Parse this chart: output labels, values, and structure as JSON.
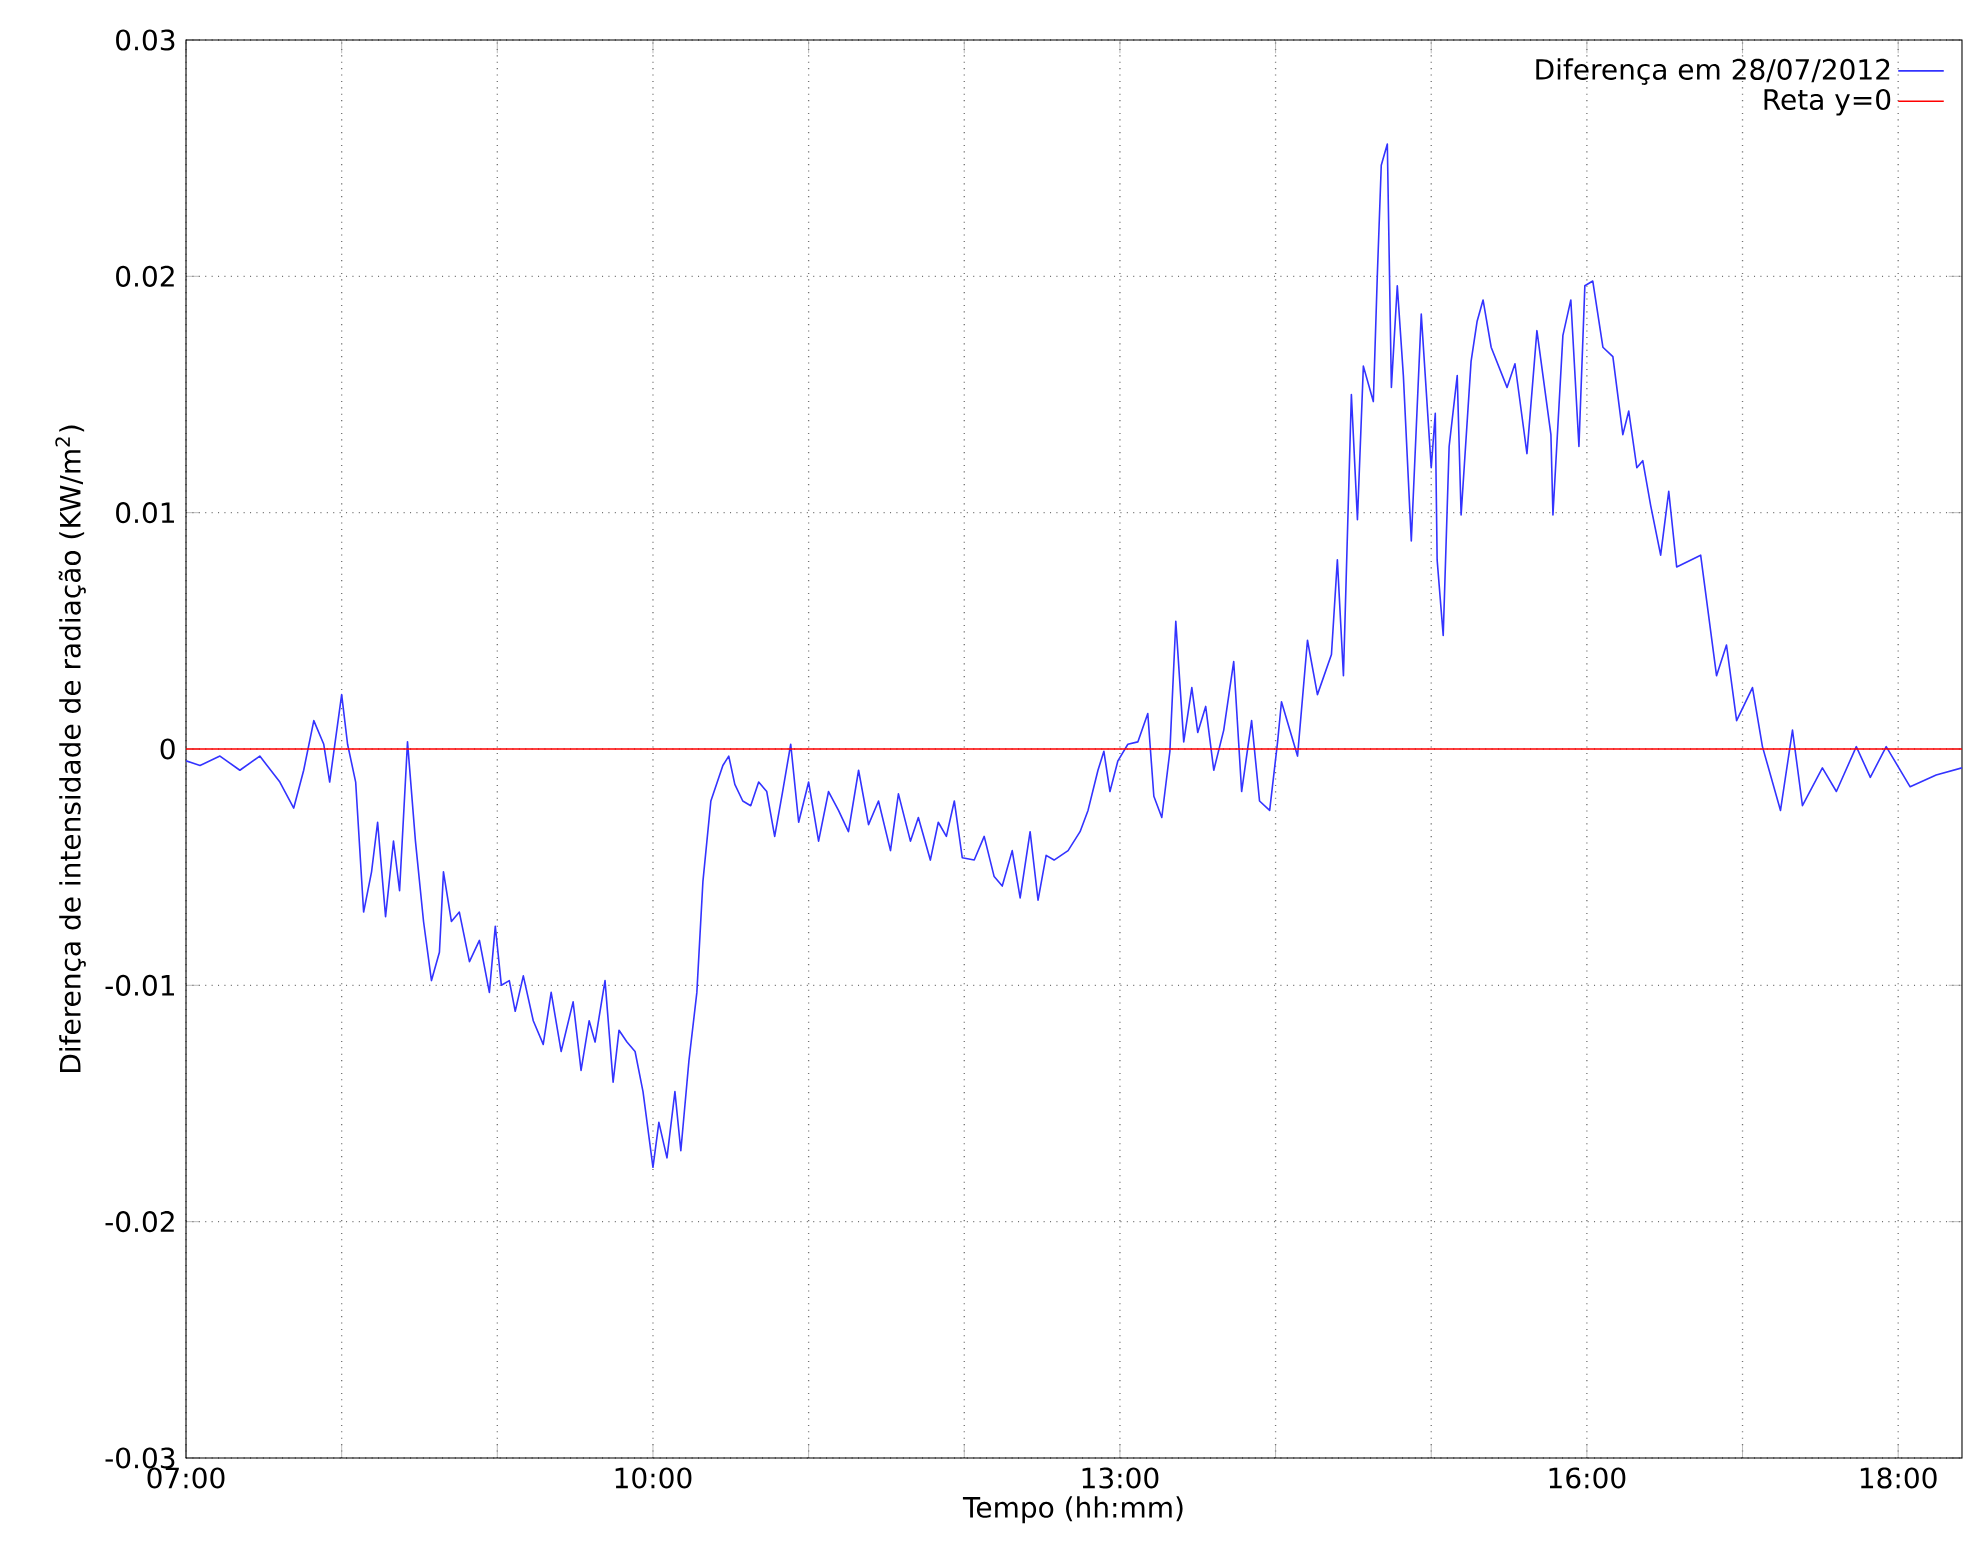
{
  "chart_data": {
    "type": "line",
    "xlabel": "Tempo (hh:mm)",
    "ylabel": "Diferença de intensidade de radiação (KW/m$^{2}$)",
    "xlim": [
      7,
      18.41
    ],
    "ylim": [
      -0.03,
      0.03
    ],
    "xticks": [
      {
        "value": 7,
        "label": "07:00"
      },
      {
        "value": 8,
        "label": null
      },
      {
        "value": 9,
        "label": null
      },
      {
        "value": 10,
        "label": "10:00"
      },
      {
        "value": 11,
        "label": null
      },
      {
        "value": 12,
        "label": null
      },
      {
        "value": 13,
        "label": "13:00"
      },
      {
        "value": 14,
        "label": null
      },
      {
        "value": 15,
        "label": null
      },
      {
        "value": 16,
        "label": "16:00"
      },
      {
        "value": 17,
        "label": null
      },
      {
        "value": 18,
        "label": "18:00"
      }
    ],
    "yticks": [
      -0.03,
      -0.02,
      -0.01,
      0,
      0.01,
      0.02,
      0.03
    ],
    "grid": true,
    "legend": "top right",
    "marker": "none",
    "series": [
      {
        "name": "Diferença em 28/07/2012",
        "color": "#3333ff",
        "x": [
          7.0,
          7.09,
          7.218,
          7.346,
          7.474,
          7.603,
          7.692,
          7.756,
          7.821,
          7.885,
          7.923,
          8.0,
          8.038,
          8.09,
          8.141,
          8.192,
          8.231,
          8.282,
          8.333,
          8.372,
          8.423,
          8.474,
          8.526,
          8.577,
          8.628,
          8.654,
          8.705,
          8.756,
          8.821,
          8.885,
          8.949,
          8.987,
          9.026,
          9.077,
          9.115,
          9.167,
          9.231,
          9.295,
          9.346,
          9.41,
          9.487,
          9.538,
          9.59,
          9.628,
          9.692,
          9.744,
          9.782,
          9.833,
          9.885,
          9.936,
          10.0,
          10.038,
          10.09,
          10.141,
          10.179,
          10.231,
          10.282,
          10.321,
          10.372,
          10.449,
          10.487,
          10.526,
          10.577,
          10.628,
          10.679,
          10.731,
          10.782,
          10.833,
          10.885,
          10.936,
          11.0,
          11.064,
          11.128,
          11.192,
          11.256,
          11.321,
          11.385,
          11.449,
          11.526,
          11.577,
          11.654,
          11.705,
          11.782,
          11.833,
          11.885,
          11.936,
          11.987,
          12.064,
          12.128,
          12.192,
          12.244,
          12.308,
          12.359,
          12.423,
          12.474,
          12.526,
          12.577,
          12.667,
          12.744,
          12.795,
          12.859,
          12.897,
          12.936,
          12.987,
          13.051,
          13.115,
          13.179,
          13.218,
          13.269,
          13.321,
          13.359,
          13.41,
          13.462,
          13.5,
          13.551,
          13.603,
          13.667,
          13.731,
          13.782,
          13.846,
          13.897,
          13.962,
          14.013,
          14.038,
          14.141,
          14.205,
          14.269,
          14.359,
          14.397,
          14.436,
          14.487,
          14.526,
          14.564,
          14.628,
          14.654,
          14.679,
          14.718,
          14.744,
          14.782,
          14.821,
          14.872,
          14.936,
          15.0,
          15.026,
          15.038,
          15.077,
          15.115,
          15.167,
          15.192,
          15.256,
          15.295,
          15.333,
          15.385,
          15.487,
          15.538,
          15.615,
          15.679,
          15.769,
          15.782,
          15.846,
          15.897,
          15.949,
          15.987,
          16.038,
          16.103,
          16.167,
          16.231,
          16.269,
          16.321,
          16.359,
          16.41,
          16.474,
          16.526,
          16.577,
          16.731,
          16.833,
          16.897,
          16.962,
          17.064,
          17.128,
          17.244,
          17.321,
          17.385,
          17.513,
          17.603,
          17.731,
          17.821,
          17.923,
          18.077,
          18.244,
          18.41
        ],
        "values": [
          -0.0005,
          -0.0007,
          -0.0003,
          -0.0009,
          -0.0003,
          -0.0014,
          -0.0025,
          -0.0009,
          0.0012,
          0.0002,
          -0.0014,
          0.0023,
          0.0002,
          -0.0014,
          -0.0069,
          -0.0052,
          -0.0031,
          -0.0071,
          -0.0039,
          -0.006,
          0.0003,
          -0.0039,
          -0.0073,
          -0.0098,
          -0.0086,
          -0.0052,
          -0.0073,
          -0.0069,
          -0.009,
          -0.0081,
          -0.0103,
          -0.0075,
          -0.01,
          -0.0098,
          -0.0111,
          -0.0096,
          -0.0115,
          -0.0125,
          -0.0103,
          -0.0128,
          -0.0107,
          -0.0136,
          -0.0115,
          -0.0124,
          -0.0098,
          -0.0141,
          -0.0119,
          -0.0124,
          -0.0128,
          -0.0145,
          -0.0177,
          -0.0158,
          -0.0173,
          -0.0145,
          -0.017,
          -0.0132,
          -0.0103,
          -0.0056,
          -0.0022,
          -0.0007,
          -0.0003,
          -0.0015,
          -0.0022,
          -0.0024,
          -0.0014,
          -0.0018,
          -0.0037,
          -0.0018,
          0.0002,
          -0.0031,
          -0.0014,
          -0.0039,
          -0.0018,
          -0.0026,
          -0.0035,
          -0.0009,
          -0.0032,
          -0.0022,
          -0.0043,
          -0.0019,
          -0.0039,
          -0.0029,
          -0.0047,
          -0.0031,
          -0.0037,
          -0.0022,
          -0.0046,
          -0.0047,
          -0.0037,
          -0.0054,
          -0.0058,
          -0.0043,
          -0.0063,
          -0.0035,
          -0.0064,
          -0.0045,
          -0.0047,
          -0.0043,
          -0.0035,
          -0.0026,
          -0.0009,
          -0.0001,
          -0.0018,
          -0.0005,
          0.0002,
          0.0003,
          0.0015,
          -0.002,
          -0.0029,
          -0.0001,
          0.0054,
          0.0003,
          0.0026,
          0.0007,
          0.0018,
          -0.0009,
          0.0008,
          0.0037,
          -0.0018,
          0.0012,
          -0.0022,
          -0.0026,
          0.0003,
          0.002,
          -0.0003,
          0.0046,
          0.0023,
          0.004,
          0.008,
          0.0031,
          0.015,
          0.0097,
          0.0162,
          0.0147,
          0.0201,
          0.0247,
          0.0256,
          0.0153,
          0.0196,
          0.0158,
          0.0088,
          0.0184,
          0.0119,
          0.0142,
          0.008,
          0.0048,
          0.0128,
          0.0158,
          0.0099,
          0.0164,
          0.0181,
          0.019,
          0.017,
          0.0153,
          0.0163,
          0.0125,
          0.0177,
          0.0133,
          0.0099,
          0.0175,
          0.019,
          0.0128,
          0.0196,
          0.0198,
          0.017,
          0.0166,
          0.0133,
          0.0143,
          0.0119,
          0.0122,
          0.0103,
          0.0082,
          0.0109,
          0.0077,
          0.0082,
          0.0031,
          0.0044,
          0.0012,
          0.0026,
          0.0001,
          -0.0026,
          0.0008,
          -0.0024,
          -0.0008,
          -0.0018,
          0.0001,
          -0.0012,
          0.0001,
          -0.0016,
          -0.0011,
          -0.0008
        ]
      },
      {
        "name": "Reta y=0",
        "color": "#ff0000",
        "x": [
          7,
          18.41
        ],
        "values": [
          0,
          0
        ]
      }
    ]
  }
}
